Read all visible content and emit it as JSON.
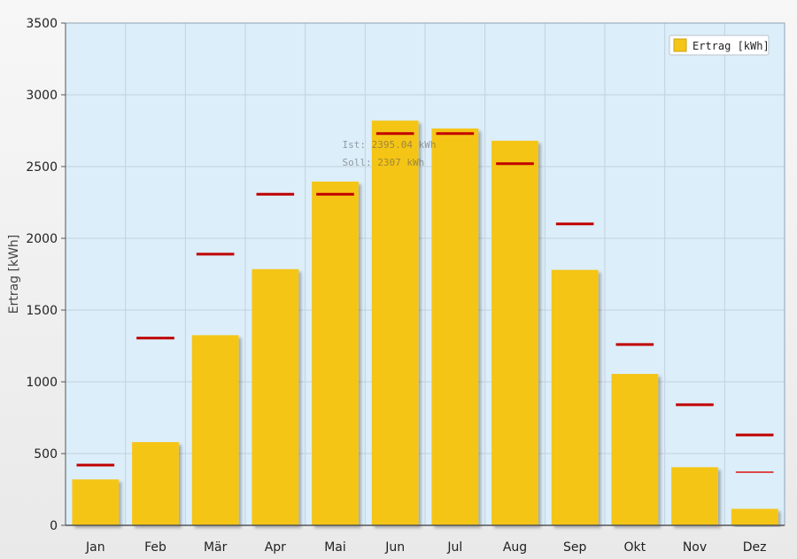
{
  "chart_data": {
    "type": "bar",
    "categories": [
      "Jan",
      "Feb",
      "Mär",
      "Apr",
      "Mai",
      "Jun",
      "Jul",
      "Aug",
      "Sep",
      "Okt",
      "Nov",
      "Dez"
    ],
    "series": [
      {
        "name": "Ertrag [kWh]",
        "values": [
          320,
          580,
          1325,
          1785,
          2395,
          2820,
          2765,
          2680,
          1780,
          1055,
          405,
          115
        ]
      }
    ],
    "targets": [
      420,
      1305,
      1890,
      2307,
      2307,
      2730,
      2730,
      2520,
      2100,
      1260,
      840,
      630
    ],
    "secondary_marker": {
      "category": "Dez",
      "value": 370
    },
    "ylabel": "Ertrag [kWh]",
    "ylim": [
      0,
      3500
    ],
    "yticks": [
      0,
      500,
      1000,
      1500,
      2000,
      2500,
      3000,
      3500
    ],
    "grid": true,
    "legend": "top-right",
    "colors": {
      "bar": "#f5c518",
      "target": "#c00000",
      "plot_bg": "#dceefa",
      "grid": "#c2d2de"
    },
    "tooltip": {
      "category": "Mai",
      "ist": "Ist: 2395.04 kWh",
      "soll": "Soll: 2307 kWh"
    }
  }
}
